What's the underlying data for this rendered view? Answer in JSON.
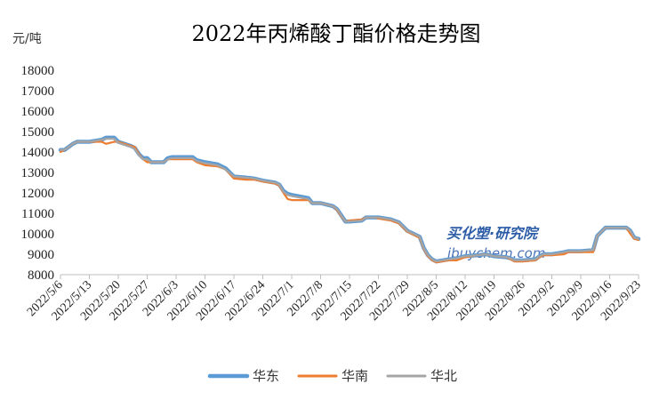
{
  "chart_data": {
    "type": "line",
    "title": "2022年丙烯酸丁酯价格走势图",
    "ylabel": "元/吨",
    "xlabel": "",
    "ylim": [
      8000,
      18000
    ],
    "yticks": [
      8000,
      9000,
      10000,
      11000,
      12000,
      13000,
      14000,
      15000,
      16000,
      17000,
      18000
    ],
    "xtick_labels": [
      "2022/5/6",
      "2022/5/13",
      "2022/5/20",
      "2022/5/27",
      "2022/6/3",
      "2022/6/10",
      "2022/6/17",
      "2022/6/24",
      "2022/7/1",
      "2022/7/8",
      "2022/7/15",
      "2022/7/22",
      "2022/7/29",
      "2022/8/5",
      "2022/8/12",
      "2022/8/19",
      "2022/8/26",
      "2022/9/2",
      "2022/9/9",
      "2022/9/16",
      "2022/9/23"
    ],
    "x_range": [
      "2022/5/6",
      "2022/9/23"
    ],
    "legend_position": "bottom",
    "grid": false,
    "series": [
      {
        "name": "华东",
        "color": "#5B9BD5",
        "points": [
          [
            "2022/5/6",
            14100
          ],
          [
            "2022/5/7",
            14100
          ],
          [
            "2022/5/9",
            14400
          ],
          [
            "2022/5/10",
            14500
          ],
          [
            "2022/5/13",
            14500
          ],
          [
            "2022/5/16",
            14600
          ],
          [
            "2022/5/17",
            14700
          ],
          [
            "2022/5/19",
            14700
          ],
          [
            "2022/5/20",
            14500
          ],
          [
            "2022/5/23",
            14300
          ],
          [
            "2022/5/24",
            14200
          ],
          [
            "2022/5/25",
            13900
          ],
          [
            "2022/5/26",
            13700
          ],
          [
            "2022/5/27",
            13700
          ],
          [
            "2022/5/28",
            13500
          ],
          [
            "2022/5/30",
            13500
          ],
          [
            "2022/5/31",
            13500
          ],
          [
            "2022/6/1",
            13700
          ],
          [
            "2022/6/2",
            13750
          ],
          [
            "2022/6/3",
            13750
          ],
          [
            "2022/6/7",
            13750
          ],
          [
            "2022/6/8",
            13600
          ],
          [
            "2022/6/10",
            13500
          ],
          [
            "2022/6/13",
            13400
          ],
          [
            "2022/6/15",
            13200
          ],
          [
            "2022/6/17",
            12800
          ],
          [
            "2022/6/20",
            12750
          ],
          [
            "2022/6/22",
            12700
          ],
          [
            "2022/6/24",
            12600
          ],
          [
            "2022/6/27",
            12500
          ],
          [
            "2022/6/28",
            12400
          ],
          [
            "2022/6/29",
            12100
          ],
          [
            "2022/6/30",
            11950
          ],
          [
            "2022/7/1",
            11900
          ],
          [
            "2022/7/5",
            11750
          ],
          [
            "2022/7/6",
            11500
          ],
          [
            "2022/7/8",
            11500
          ],
          [
            "2022/7/11",
            11350
          ],
          [
            "2022/7/12",
            11200
          ],
          [
            "2022/7/13",
            10900
          ],
          [
            "2022/7/14",
            10600
          ],
          [
            "2022/7/15",
            10600
          ],
          [
            "2022/7/18",
            10650
          ],
          [
            "2022/7/19",
            10800
          ],
          [
            "2022/7/21",
            10800
          ],
          [
            "2022/7/22",
            10800
          ],
          [
            "2022/7/25",
            10700
          ],
          [
            "2022/7/27",
            10550
          ],
          [
            "2022/7/29",
            10150
          ],
          [
            "2022/8/1",
            9850
          ],
          [
            "2022/8/2",
            9300
          ],
          [
            "2022/8/3",
            8950
          ],
          [
            "2022/8/4",
            8750
          ],
          [
            "2022/8/5",
            8650
          ],
          [
            "2022/8/8",
            8750
          ],
          [
            "2022/8/10",
            8800
          ],
          [
            "2022/8/12",
            8900
          ],
          [
            "2022/8/15",
            8950
          ],
          [
            "2022/8/17",
            9000
          ],
          [
            "2022/8/19",
            8900
          ],
          [
            "2022/8/22",
            8850
          ],
          [
            "2022/8/23",
            8800
          ],
          [
            "2022/8/24",
            8700
          ],
          [
            "2022/8/26",
            8700
          ],
          [
            "2022/8/29",
            8750
          ],
          [
            "2022/8/30",
            8900
          ],
          [
            "2022/8/31",
            9000
          ],
          [
            "2022/9/2",
            9000
          ],
          [
            "2022/9/5",
            9100
          ],
          [
            "2022/9/6",
            9150
          ],
          [
            "2022/9/9",
            9150
          ],
          [
            "2022/9/12",
            9200
          ],
          [
            "2022/9/13",
            9900
          ],
          [
            "2022/9/14",
            10100
          ],
          [
            "2022/9/15",
            10300
          ],
          [
            "2022/9/16",
            10300
          ],
          [
            "2022/9/20",
            10300
          ],
          [
            "2022/9/21",
            10150
          ],
          [
            "2022/9/22",
            9800
          ],
          [
            "2022/9/23",
            9750
          ]
        ]
      },
      {
        "name": "华南",
        "color": "#ED7D31",
        "points": [
          [
            "2022/5/6",
            14000
          ],
          [
            "2022/5/7",
            14100
          ],
          [
            "2022/5/9",
            14400
          ],
          [
            "2022/5/10",
            14500
          ],
          [
            "2022/5/13",
            14500
          ],
          [
            "2022/5/16",
            14500
          ],
          [
            "2022/5/17",
            14400
          ],
          [
            "2022/5/19",
            14500
          ],
          [
            "2022/5/20",
            14500
          ],
          [
            "2022/5/23",
            14300
          ],
          [
            "2022/5/24",
            14250
          ],
          [
            "2022/5/25",
            13900
          ],
          [
            "2022/5/26",
            13650
          ],
          [
            "2022/5/27",
            13500
          ],
          [
            "2022/5/28",
            13500
          ],
          [
            "2022/5/30",
            13500
          ],
          [
            "2022/5/31",
            13500
          ],
          [
            "2022/6/1",
            13650
          ],
          [
            "2022/6/2",
            13650
          ],
          [
            "2022/6/3",
            13650
          ],
          [
            "2022/6/7",
            13650
          ],
          [
            "2022/6/8",
            13500
          ],
          [
            "2022/6/10",
            13350
          ],
          [
            "2022/6/13",
            13300
          ],
          [
            "2022/6/15",
            13150
          ],
          [
            "2022/6/17",
            12700
          ],
          [
            "2022/6/20",
            12650
          ],
          [
            "2022/6/22",
            12650
          ],
          [
            "2022/6/24",
            12550
          ],
          [
            "2022/6/27",
            12450
          ],
          [
            "2022/6/28",
            12350
          ],
          [
            "2022/6/29",
            12000
          ],
          [
            "2022/6/30",
            11700
          ],
          [
            "2022/7/1",
            11650
          ],
          [
            "2022/7/5",
            11650
          ],
          [
            "2022/7/6",
            11500
          ],
          [
            "2022/7/8",
            11500
          ],
          [
            "2022/7/11",
            11350
          ],
          [
            "2022/7/12",
            11150
          ],
          [
            "2022/7/13",
            10850
          ],
          [
            "2022/7/14",
            10600
          ],
          [
            "2022/7/15",
            10650
          ],
          [
            "2022/7/18",
            10700
          ],
          [
            "2022/7/19",
            10800
          ],
          [
            "2022/7/21",
            10800
          ],
          [
            "2022/7/22",
            10750
          ],
          [
            "2022/7/25",
            10650
          ],
          [
            "2022/7/27",
            10500
          ],
          [
            "2022/7/29",
            10100
          ],
          [
            "2022/8/1",
            9800
          ],
          [
            "2022/8/2",
            9250
          ],
          [
            "2022/8/3",
            8900
          ],
          [
            "2022/8/4",
            8700
          ],
          [
            "2022/8/5",
            8600
          ],
          [
            "2022/8/8",
            8700
          ],
          [
            "2022/8/10",
            8700
          ],
          [
            "2022/8/12",
            8850
          ],
          [
            "2022/8/15",
            8950
          ],
          [
            "2022/8/17",
            9000
          ],
          [
            "2022/8/19",
            8900
          ],
          [
            "2022/8/22",
            8850
          ],
          [
            "2022/8/23",
            8750
          ],
          [
            "2022/8/24",
            8650
          ],
          [
            "2022/8/26",
            8650
          ],
          [
            "2022/8/29",
            8700
          ],
          [
            "2022/8/30",
            8850
          ],
          [
            "2022/8/31",
            8950
          ],
          [
            "2022/9/2",
            8950
          ],
          [
            "2022/9/5",
            9000
          ],
          [
            "2022/9/6",
            9100
          ],
          [
            "2022/9/9",
            9100
          ],
          [
            "2022/9/12",
            9100
          ],
          [
            "2022/9/13",
            9900
          ],
          [
            "2022/9/14",
            10100
          ],
          [
            "2022/9/15",
            10300
          ],
          [
            "2022/9/16",
            10300
          ],
          [
            "2022/9/20",
            10300
          ],
          [
            "2022/9/21",
            10000
          ],
          [
            "2022/9/22",
            9750
          ],
          [
            "2022/9/23",
            9700
          ]
        ]
      },
      {
        "name": "华北",
        "color": "#A5A5A5",
        "points": [
          [
            "2022/5/6",
            14100
          ],
          [
            "2022/5/7",
            14100
          ],
          [
            "2022/5/9",
            14400
          ],
          [
            "2022/5/10",
            14500
          ],
          [
            "2022/5/13",
            14500
          ],
          [
            "2022/5/16",
            14600
          ],
          [
            "2022/5/17",
            14650
          ],
          [
            "2022/5/19",
            14650
          ],
          [
            "2022/5/20",
            14450
          ],
          [
            "2022/5/23",
            14250
          ],
          [
            "2022/5/24",
            14150
          ],
          [
            "2022/5/25",
            13850
          ],
          [
            "2022/5/26",
            13650
          ],
          [
            "2022/5/27",
            13650
          ],
          [
            "2022/5/28",
            13500
          ],
          [
            "2022/5/30",
            13500
          ],
          [
            "2022/5/31",
            13500
          ],
          [
            "2022/6/1",
            13650
          ],
          [
            "2022/6/2",
            13700
          ],
          [
            "2022/6/3",
            13700
          ],
          [
            "2022/6/7",
            13700
          ],
          [
            "2022/6/8",
            13550
          ],
          [
            "2022/6/10",
            13450
          ],
          [
            "2022/6/13",
            13350
          ],
          [
            "2022/6/15",
            13150
          ],
          [
            "2022/6/17",
            12800
          ],
          [
            "2022/6/20",
            12750
          ],
          [
            "2022/6/22",
            12700
          ],
          [
            "2022/6/24",
            12600
          ],
          [
            "2022/6/27",
            12500
          ],
          [
            "2022/6/28",
            12400
          ],
          [
            "2022/6/29",
            12050
          ],
          [
            "2022/6/30",
            11900
          ],
          [
            "2022/7/1",
            11850
          ],
          [
            "2022/7/5",
            11700
          ],
          [
            "2022/7/6",
            11500
          ],
          [
            "2022/7/8",
            11500
          ],
          [
            "2022/7/11",
            11350
          ],
          [
            "2022/7/12",
            11200
          ],
          [
            "2022/7/13",
            10900
          ],
          [
            "2022/7/14",
            10600
          ],
          [
            "2022/7/15",
            10600
          ],
          [
            "2022/7/18",
            10650
          ],
          [
            "2022/7/19",
            10800
          ],
          [
            "2022/7/21",
            10800
          ],
          [
            "2022/7/22",
            10800
          ],
          [
            "2022/7/25",
            10700
          ],
          [
            "2022/7/27",
            10550
          ],
          [
            "2022/7/29",
            10150
          ],
          [
            "2022/8/1",
            9850
          ],
          [
            "2022/8/2",
            9300
          ],
          [
            "2022/8/3",
            8950
          ],
          [
            "2022/8/4",
            8750
          ],
          [
            "2022/8/5",
            8650
          ],
          [
            "2022/8/8",
            8750
          ],
          [
            "2022/8/10",
            8800
          ],
          [
            "2022/8/12",
            8900
          ],
          [
            "2022/8/15",
            8950
          ],
          [
            "2022/8/17",
            9000
          ],
          [
            "2022/8/19",
            8900
          ],
          [
            "2022/8/22",
            8850
          ],
          [
            "2022/8/23",
            8800
          ],
          [
            "2022/8/24",
            8700
          ],
          [
            "2022/8/26",
            8700
          ],
          [
            "2022/8/29",
            8750
          ],
          [
            "2022/8/30",
            8900
          ],
          [
            "2022/8/31",
            9000
          ],
          [
            "2022/9/2",
            9000
          ],
          [
            "2022/9/5",
            9100
          ],
          [
            "2022/9/6",
            9150
          ],
          [
            "2022/9/9",
            9150
          ],
          [
            "2022/9/12",
            9200
          ],
          [
            "2022/9/13",
            9900
          ],
          [
            "2022/9/14",
            10100
          ],
          [
            "2022/9/15",
            10300
          ],
          [
            "2022/9/16",
            10300
          ],
          [
            "2022/9/20",
            10300
          ],
          [
            "2022/9/21",
            10150
          ],
          [
            "2022/9/22",
            9800
          ],
          [
            "2022/9/23",
            9750
          ]
        ]
      }
    ]
  },
  "watermark": {
    "line1": "买化塑·研究院",
    "line2": "ibuychem.com",
    "line1_color": "#2E5EA8",
    "line2_color": "#4A74B8"
  }
}
